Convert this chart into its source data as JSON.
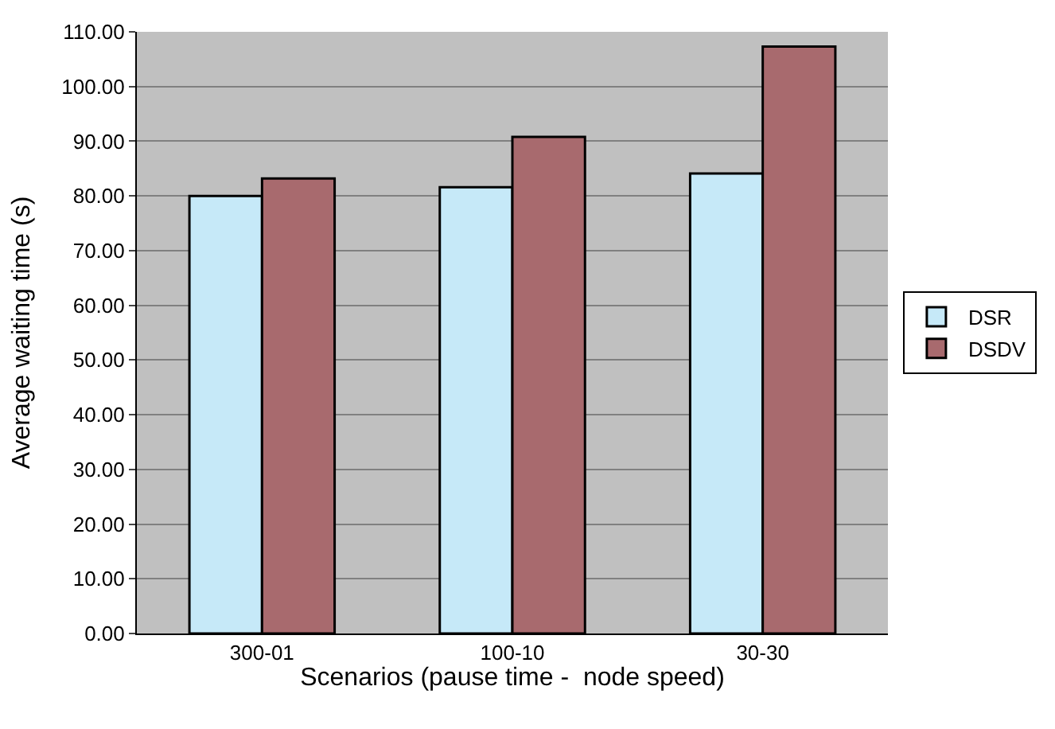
{
  "chart_data": {
    "type": "bar",
    "categories": [
      "300-01",
      "100-10",
      "30-30"
    ],
    "series": [
      {
        "name": "DSR",
        "color": "#c6e9f8",
        "values": [
          80.0,
          81.6,
          84.1
        ]
      },
      {
        "name": "DSDV",
        "color": "#a86a6e",
        "values": [
          83.2,
          90.8,
          107.3
        ]
      }
    ],
    "xlabel": "Scenarios (pause time -  node speed)",
    "ylabel": "Average waiting time (s)",
    "ylim": [
      0,
      110
    ],
    "yticks": [
      {
        "value": 0,
        "label": "0.00"
      },
      {
        "value": 10,
        "label": "10.00"
      },
      {
        "value": 20,
        "label": "20.00"
      },
      {
        "value": 30,
        "label": "30.00"
      },
      {
        "value": 40,
        "label": "40.00"
      },
      {
        "value": 50,
        "label": "50.00"
      },
      {
        "value": 60,
        "label": "60.00"
      },
      {
        "value": 70,
        "label": "70.00"
      },
      {
        "value": 80,
        "label": "80.00"
      },
      {
        "value": 90,
        "label": "90.00"
      },
      {
        "value": 100,
        "label": "100.00"
      },
      {
        "value": 110,
        "label": "110.00"
      }
    ],
    "grid": "y",
    "legend": "right"
  }
}
